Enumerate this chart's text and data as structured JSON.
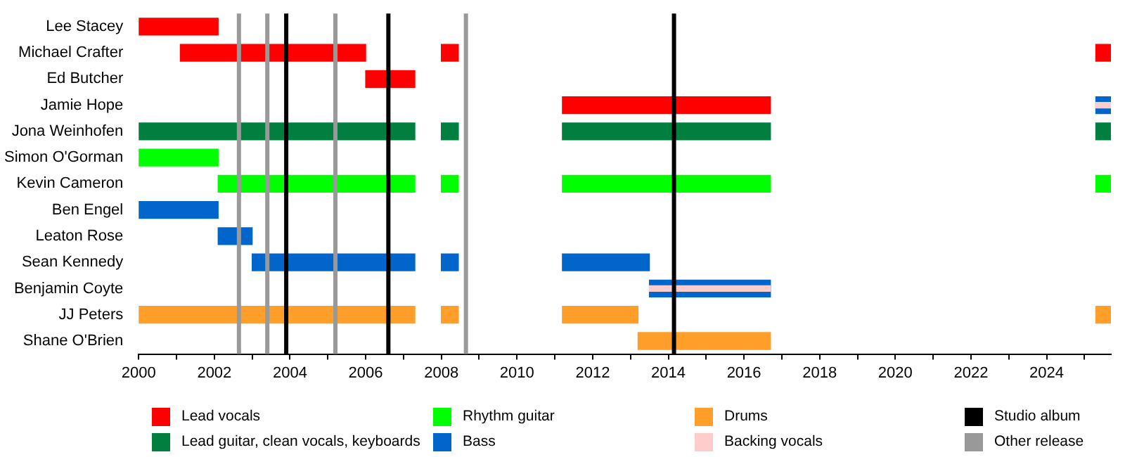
{
  "chart_data": {
    "type": "bar",
    "orientation": "horizontal",
    "legend": "bottom",
    "grid": false,
    "categories": [
      "Lee Stacey",
      "Michael Crafter",
      "Ed Butcher",
      "Jamie Hope",
      "Jona Weinhofen",
      "Simon O'Gorman",
      "Kevin Cameron",
      "Ben Engel",
      "Leaton Rose",
      "Sean Kennedy",
      "Benjamin Coyte",
      "JJ Peters",
      "Shane O'Brien"
    ],
    "xlim": [
      2000,
      2025.7
    ],
    "xticks": [
      2000,
      {
        "value": 2001,
        "label": null
      },
      2002,
      {
        "value": 2003,
        "label": null
      },
      2004,
      {
        "value": 2005,
        "label": null
      },
      2006,
      {
        "value": 2007,
        "label": null
      },
      2008,
      {
        "value": 2009,
        "label": null
      },
      2010,
      {
        "value": 2011,
        "label": null
      },
      2012,
      {
        "value": 2013,
        "label": null
      },
      2014,
      {
        "value": 2015,
        "label": null
      },
      2016,
      {
        "value": 2017,
        "label": null
      },
      2018,
      {
        "value": 2019,
        "label": null
      },
      2020,
      {
        "value": 2021,
        "label": null
      },
      2022,
      {
        "value": 2023,
        "label": null
      },
      2024,
      {
        "value": 2025,
        "label": null
      }
    ],
    "series": [
      {
        "name": "Lead vocals",
        "color": "#ff0000",
        "base": [
          2000,
          2001.1,
          2006.0,
          2011.2,
          null,
          null,
          null,
          null,
          null,
          null,
          null,
          null,
          null
        ],
        "values": [
          2.1,
          4.9,
          1.3,
          5.5,
          null,
          null,
          null,
          null,
          null,
          null,
          null,
          null,
          null
        ]
      },
      {
        "color": "#ff0000",
        "base": [
          null,
          2008,
          null,
          null,
          null,
          null,
          null,
          null,
          null,
          null,
          null,
          null,
          null
        ],
        "values": [
          null,
          0.45,
          null,
          null,
          null,
          null,
          null,
          null,
          null,
          null,
          null,
          null,
          null
        ]
      },
      {
        "color": "#ff0000",
        "base": [
          null,
          2025.3,
          null,
          null,
          null,
          null,
          null,
          null,
          null,
          null,
          null,
          null,
          null
        ],
        "values": [
          null,
          0.4,
          null,
          null,
          null,
          null,
          null,
          null,
          null,
          null,
          null,
          null,
          null
        ]
      },
      {
        "name": "Lead guitar, clean vocals, keyboards",
        "color": "#007f3f",
        "base": [
          null,
          null,
          null,
          null,
          2000,
          null,
          null,
          null,
          null,
          null,
          null,
          null,
          null
        ],
        "values": [
          null,
          null,
          null,
          null,
          7.3,
          null,
          null,
          null,
          null,
          null,
          null,
          null,
          null
        ]
      },
      {
        "color": "#007f3f",
        "base": [
          null,
          null,
          null,
          null,
          2008,
          null,
          null,
          null,
          null,
          null,
          null,
          null,
          null
        ],
        "values": [
          null,
          null,
          null,
          null,
          0.45,
          null,
          null,
          null,
          null,
          null,
          null,
          null,
          null
        ]
      },
      {
        "color": "#007f3f",
        "base": [
          null,
          null,
          null,
          null,
          2011.2,
          null,
          null,
          null,
          null,
          null,
          null,
          null,
          null
        ],
        "values": [
          null,
          null,
          null,
          null,
          5.5,
          null,
          null,
          null,
          null,
          null,
          null,
          null,
          null
        ]
      },
      {
        "color": "#007f3f",
        "base": [
          null,
          null,
          null,
          null,
          2025.3,
          null,
          null,
          null,
          null,
          null,
          null,
          null,
          null
        ],
        "values": [
          null,
          null,
          null,
          null,
          0.4,
          null,
          null,
          null,
          null,
          null,
          null,
          null,
          null
        ]
      },
      {
        "name": "Rhythm guitar",
        "color": "#00ff00",
        "base": [
          null,
          null,
          null,
          null,
          null,
          2000,
          2002.1,
          null,
          null,
          null,
          null,
          null,
          null
        ],
        "values": [
          null,
          null,
          null,
          null,
          null,
          2.1,
          5.2,
          null,
          null,
          null,
          null,
          null,
          null
        ]
      },
      {
        "color": "#00ff00",
        "base": [
          null,
          null,
          null,
          null,
          null,
          null,
          2008,
          null,
          null,
          null,
          null,
          null,
          null
        ],
        "values": [
          null,
          null,
          null,
          null,
          null,
          null,
          0.45,
          null,
          null,
          null,
          null,
          null,
          null
        ]
      },
      {
        "color": "#00ff00",
        "base": [
          null,
          null,
          null,
          null,
          null,
          null,
          2011.2,
          null,
          null,
          null,
          null,
          null,
          null
        ],
        "values": [
          null,
          null,
          null,
          null,
          null,
          null,
          5.5,
          null,
          null,
          null,
          null,
          null,
          null
        ]
      },
      {
        "color": "#00ff00",
        "base": [
          null,
          null,
          null,
          null,
          null,
          null,
          2025.3,
          null,
          null,
          null,
          null,
          null,
          null
        ],
        "values": [
          null,
          null,
          null,
          null,
          null,
          null,
          0.4,
          null,
          null,
          null,
          null,
          null,
          null
        ]
      },
      {
        "name": "Bass",
        "color": "#0066cc",
        "base": [
          null,
          null,
          null,
          2025.3,
          null,
          null,
          null,
          2000,
          2002.1,
          2003.0,
          2013.5,
          null,
          null
        ],
        "values": [
          null,
          null,
          null,
          0.4,
          null,
          null,
          null,
          2.1,
          0.9,
          4.3,
          3.2,
          null,
          null
        ]
      },
      {
        "color": "#0066cc",
        "base": [
          null,
          null,
          null,
          null,
          null,
          null,
          null,
          null,
          null,
          2008,
          null,
          null,
          null
        ],
        "values": [
          null,
          null,
          null,
          null,
          null,
          null,
          null,
          null,
          null,
          0.45,
          null,
          null,
          null
        ]
      },
      {
        "color": "#0066cc",
        "base": [
          null,
          null,
          null,
          null,
          null,
          null,
          null,
          null,
          null,
          2011.2,
          null,
          null,
          null
        ],
        "values": [
          null,
          null,
          null,
          null,
          null,
          null,
          null,
          null,
          null,
          2.3,
          null,
          null,
          null
        ]
      },
      {
        "name": "Drums",
        "color": "#ff9f2a",
        "base": [
          null,
          null,
          null,
          null,
          null,
          null,
          null,
          null,
          null,
          null,
          null,
          2000,
          2013.2
        ],
        "values": [
          null,
          null,
          null,
          null,
          null,
          null,
          null,
          null,
          null,
          null,
          null,
          7.3,
          3.5
        ]
      },
      {
        "color": "#ff9f2a",
        "base": [
          null,
          null,
          null,
          null,
          null,
          null,
          null,
          null,
          null,
          null,
          null,
          2008,
          null
        ],
        "values": [
          null,
          null,
          null,
          null,
          null,
          null,
          null,
          null,
          null,
          null,
          null,
          0.45,
          null
        ]
      },
      {
        "color": "#ff9f2a",
        "base": [
          null,
          null,
          null,
          null,
          null,
          null,
          null,
          null,
          null,
          null,
          null,
          2011.2,
          null
        ],
        "values": [
          null,
          null,
          null,
          null,
          null,
          null,
          null,
          null,
          null,
          null,
          null,
          2.0,
          null
        ]
      },
      {
        "color": "#ff9f2a",
        "base": [
          null,
          null,
          null,
          null,
          null,
          null,
          null,
          null,
          null,
          null,
          null,
          2025.3,
          null
        ],
        "values": [
          null,
          null,
          null,
          null,
          null,
          null,
          null,
          null,
          null,
          null,
          null,
          0.4,
          null
        ]
      },
      {
        "name": "Backing vocals",
        "color": "#ffcccc",
        "base": [
          null,
          null,
          null,
          2025.3,
          null,
          null,
          null,
          null,
          null,
          null,
          2013.5,
          null,
          null
        ],
        "values": [
          null,
          null,
          null,
          0.4,
          null,
          null,
          null,
          null,
          null,
          null,
          3.2,
          null,
          null
        ]
      }
    ],
    "ref_lines": [
      {
        "axis": "x",
        "value": 2003.9,
        "label": "Studio album",
        "color": "#000000"
      },
      {
        "axis": "x",
        "value": 2006.6,
        "color": "#000000"
      },
      {
        "axis": "x",
        "value": 2014.15,
        "color": "#000000"
      },
      {
        "axis": "x",
        "value": 2002.65,
        "label": "Other release",
        "color": "#999999"
      },
      {
        "axis": "x",
        "value": 2003.4,
        "color": "#999999"
      },
      {
        "axis": "x",
        "value": 2005.2,
        "color": "#999999"
      },
      {
        "axis": "x",
        "value": 2008.65,
        "color": "#999999"
      }
    ]
  }
}
